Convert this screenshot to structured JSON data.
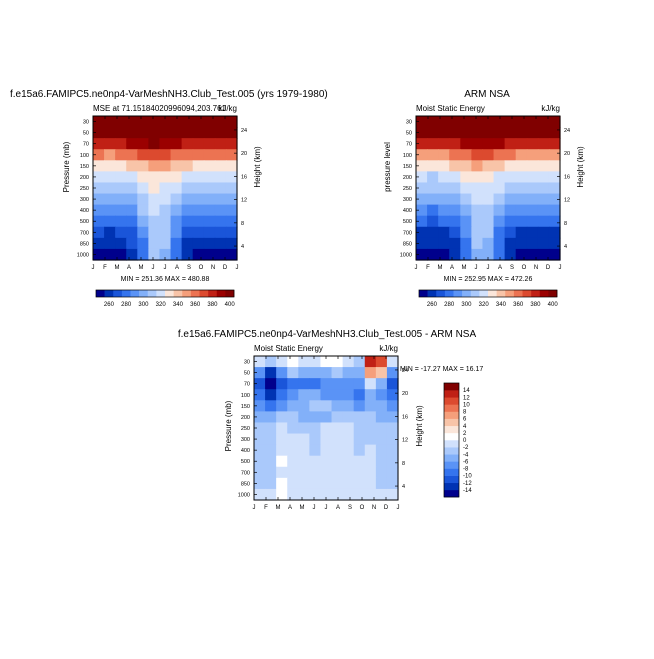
{
  "figure": {
    "title_left": "f.e15a6.FAMIPC5.ne0np4-VarMeshNH3.Club_Test.005 (yrs 1979-1980)",
    "title_right": "ARM NSA",
    "title_bottom": "f.e15a6.FAMIPC5.ne0np4-VarMeshNH3.Club_Test.005 - ARM NSA"
  },
  "palette": {
    "full": [
      "#00008c",
      "#0033b3",
      "#1a55d9",
      "#3574ee",
      "#5a93f6",
      "#82b0f9",
      "#aac9fb",
      "#d1e1fc",
      "#fbe6da",
      "#f8c4a8",
      "#f59f7b",
      "#ec7352",
      "#dc4a2f",
      "#c02015",
      "#9b0000",
      "#800000"
    ],
    "diff": [
      "#00008c",
      "#0033b3",
      "#1a55d9",
      "#3574ee",
      "#5a93f6",
      "#82b0f9",
      "#aac9fb",
      "#d1e1fc",
      "#ffffff",
      "#fbe6da",
      "#f8c4a8",
      "#f59f7b",
      "#ec7352",
      "#dc4a2f",
      "#c02015",
      "#800000"
    ]
  },
  "chart_data": [
    {
      "type": "heatmap",
      "title": "MSE at 71.15184020996094,203.761",
      "unit": "kJ/kg",
      "ylabel": "Pressure (mb)",
      "ylabel_right": "Height (km)",
      "stats": "MIN = 251.36  MAX = 480.88",
      "x_ticks": [
        "J",
        "F",
        "M",
        "A",
        "M",
        "J",
        "J",
        "A",
        "S",
        "O",
        "N",
        "D",
        "J"
      ],
      "y_ticks": [
        "30",
        "50",
        "70",
        "100",
        "150",
        "200",
        "250",
        "300",
        "400",
        "500",
        "700",
        "850",
        "1000"
      ],
      "y_ticks_right": [
        "24",
        "20",
        "16",
        "12",
        "8",
        "4"
      ],
      "pressure_levels": [
        30,
        50,
        70,
        100,
        150,
        200,
        250,
        300,
        400,
        500,
        700,
        850,
        1000
      ],
      "months": [
        "J",
        "F",
        "M",
        "A",
        "M",
        "J",
        "J",
        "A",
        "S",
        "O",
        "N",
        "D",
        "J"
      ],
      "values": [
        [
          480,
          480,
          480,
          480,
          480,
          480,
          480,
          480,
          480,
          480,
          480,
          480,
          480
        ],
        [
          418,
          418,
          420,
          422,
          428,
          432,
          430,
          425,
          420,
          418,
          418,
          418,
          418
        ],
        [
          385,
          384,
          386,
          390,
          396,
          400,
          398,
          394,
          388,
          386,
          385,
          385,
          385
        ],
        [
          360,
          358,
          360,
          364,
          370,
          374,
          372,
          368,
          362,
          360,
          360,
          360,
          360
        ],
        [
          338,
          336,
          338,
          342,
          348,
          352,
          350,
          346,
          340,
          338,
          338,
          338,
          338
        ],
        [
          322,
          320,
          322,
          326,
          332,
          336,
          334,
          330,
          324,
          322,
          322,
          322,
          322
        ],
        [
          314,
          312,
          313,
          316,
          324,
          330,
          328,
          322,
          316,
          314,
          314,
          314,
          314
        ],
        [
          306,
          304,
          305,
          308,
          318,
          326,
          324,
          316,
          308,
          306,
          306,
          306,
          306
        ],
        [
          292,
          290,
          292,
          296,
          310,
          320,
          318,
          306,
          296,
          292,
          292,
          292,
          292
        ],
        [
          282,
          280,
          282,
          286,
          300,
          316,
          314,
          298,
          286,
          282,
          282,
          282,
          282
        ],
        [
          270,
          268,
          270,
          276,
          292,
          314,
          312,
          290,
          274,
          270,
          270,
          270,
          270
        ],
        [
          264,
          262,
          264,
          270,
          288,
          312,
          310,
          286,
          268,
          264,
          264,
          264,
          264
        ],
        [
          258,
          256,
          258,
          264,
          284,
          310,
          308,
          282,
          264,
          258,
          258,
          258,
          258
        ]
      ],
      "colorbar": {
        "levels": [
          250,
          260,
          270,
          280,
          290,
          300,
          310,
          320,
          330,
          340,
          350,
          360,
          370,
          380,
          390,
          400,
          410
        ],
        "labels": [
          "260",
          "280",
          "300",
          "320",
          "340",
          "360",
          "380",
          "400"
        ]
      }
    },
    {
      "type": "heatmap",
      "title": "Moist Static Energy",
      "unit": "kJ/kg",
      "ylabel": "pressure level",
      "ylabel_right": "Height (km)",
      "stats": "MIN = 252.95  MAX = 472.26",
      "x_ticks": [
        "J",
        "F",
        "M",
        "A",
        "M",
        "J",
        "J",
        "A",
        "S",
        "O",
        "N",
        "D",
        "J"
      ],
      "y_ticks": [
        "30",
        "50",
        "70",
        "100",
        "150",
        "200",
        "250",
        "300",
        "400",
        "500",
        "700",
        "850",
        "1000"
      ],
      "y_ticks_right": [
        "24",
        "20",
        "16",
        "12",
        "8",
        "4"
      ],
      "pressure_levels": [
        30,
        50,
        70,
        100,
        150,
        200,
        250,
        300,
        400,
        500,
        700,
        850,
        1000
      ],
      "months": [
        "J",
        "F",
        "M",
        "A",
        "M",
        "J",
        "J",
        "A",
        "S",
        "O",
        "N",
        "D",
        "J"
      ],
      "values": [
        [
          472,
          472,
          472,
          472,
          472,
          472,
          472,
          472,
          472,
          472,
          472,
          472,
          472
        ],
        [
          416,
          416,
          418,
          420,
          426,
          430,
          428,
          424,
          418,
          416,
          416,
          416,
          416
        ],
        [
          384,
          383,
          385,
          389,
          395,
          399,
          397,
          393,
          387,
          385,
          384,
          384,
          384
        ],
        [
          359,
          357,
          359,
          363,
          369,
          373,
          371,
          367,
          361,
          359,
          359,
          359,
          359
        ],
        [
          337,
          335,
          337,
          341,
          347,
          351,
          349,
          345,
          339,
          337,
          337,
          337,
          337
        ],
        [
          321,
          319,
          321,
          325,
          331,
          335,
          333,
          329,
          323,
          321,
          321,
          321,
          321
        ],
        [
          313,
          311,
          312,
          315,
          323,
          329,
          327,
          321,
          315,
          313,
          313,
          313,
          313
        ],
        [
          305,
          303,
          304,
          307,
          317,
          325,
          323,
          315,
          307,
          305,
          305,
          305,
          305
        ],
        [
          291,
          289,
          291,
          295,
          309,
          319,
          317,
          305,
          295,
          291,
          291,
          291,
          291
        ],
        [
          281,
          279,
          281,
          285,
          299,
          315,
          313,
          297,
          285,
          281,
          281,
          281,
          281
        ],
        [
          269,
          267,
          269,
          275,
          291,
          313,
          311,
          289,
          273,
          269,
          269,
          269,
          269
        ],
        [
          263,
          261,
          263,
          269,
          287,
          311,
          309,
          285,
          267,
          263,
          263,
          263,
          263
        ],
        [
          257,
          255,
          257,
          263,
          283,
          309,
          307,
          281,
          263,
          257,
          257,
          257,
          257
        ]
      ],
      "colorbar": {
        "levels": [
          250,
          260,
          270,
          280,
          290,
          300,
          310,
          320,
          330,
          340,
          350,
          360,
          370,
          380,
          390,
          400,
          410
        ],
        "labels": [
          "260",
          "280",
          "300",
          "320",
          "340",
          "360",
          "380",
          "400"
        ]
      }
    },
    {
      "type": "heatmap",
      "title": "Moist Static Energy",
      "unit": "kJ/kg",
      "ylabel": "Pressure (mb)",
      "ylabel_right": "Height (km)",
      "stats": "MIN = -17.27  MAX =  16.17",
      "x_ticks": [
        "J",
        "F",
        "M",
        "A",
        "M",
        "J",
        "J",
        "A",
        "S",
        "O",
        "N",
        "D",
        "J"
      ],
      "y_ticks": [
        "30",
        "50",
        "70",
        "100",
        "150",
        "200",
        "250",
        "300",
        "400",
        "500",
        "700",
        "850",
        "1000"
      ],
      "y_ticks_right": [
        "24",
        "20",
        "16",
        "12",
        "8",
        "4"
      ],
      "pressure_levels": [
        30,
        50,
        70,
        100,
        150,
        200,
        250,
        300,
        400,
        500,
        700,
        850,
        1000
      ],
      "months": [
        "J",
        "F",
        "M",
        "A",
        "M",
        "J",
        "J",
        "A",
        "S",
        "O",
        "N",
        "D",
        "J"
      ],
      "values": [
        [
          -2,
          -4,
          -1,
          1,
          -1,
          -2,
          0,
          1,
          -1,
          -4,
          12,
          10,
          -2
        ],
        [
          -8,
          -14,
          -7,
          -4,
          -5,
          -6,
          -5,
          -4,
          -5,
          -6,
          6,
          4,
          -8
        ],
        [
          -11,
          -16,
          -11,
          -9,
          -9,
          -9,
          -8,
          -7,
          -7,
          -8,
          -2,
          -6,
          -11
        ],
        [
          -9,
          -13,
          -10,
          -7,
          -5,
          -6,
          -7,
          -8,
          -8,
          -10,
          -6,
          -8,
          -9
        ],
        [
          -7,
          -9,
          -7,
          -5,
          -5,
          -4,
          -4,
          -5,
          -6,
          -8,
          -5,
          -6,
          -7
        ],
        [
          -5,
          -5,
          -3,
          -4,
          -5,
          -5,
          -5,
          -3,
          -3,
          -4,
          -4,
          -5,
          -5
        ],
        [
          -4,
          -3,
          -2,
          -3,
          -3,
          -3,
          -2,
          -2,
          -2,
          -3,
          -3,
          -4,
          -4
        ],
        [
          -3,
          -3,
          -1,
          -2,
          -2,
          -3,
          -2,
          -2,
          -2,
          -3,
          -3,
          -3,
          -3
        ],
        [
          -3,
          -3,
          -1,
          -2,
          -2,
          -3,
          -1,
          -2,
          -1,
          -3,
          -2,
          -3,
          -3
        ],
        [
          -3,
          -3,
          1,
          -2,
          -2,
          -2,
          -2,
          -1,
          -2,
          -2,
          -2,
          -3,
          -3
        ],
        [
          -3,
          -3,
          -1,
          -2,
          -2,
          -2,
          -1,
          -2,
          -2,
          -2,
          -2,
          -3,
          -3
        ],
        [
          -3,
          -3,
          1,
          -2,
          -2,
          -2,
          -1,
          -2,
          -1,
          -2,
          -2,
          -3,
          -3
        ],
        [
          -2,
          -2,
          1,
          -2,
          -1,
          -1,
          -2,
          -1,
          -2,
          -2,
          -2,
          -2,
          -2
        ]
      ],
      "colorbar": {
        "levels": [
          -16,
          -14,
          -12,
          -10,
          -8,
          -6,
          -4,
          -2,
          0,
          2,
          4,
          6,
          8,
          10,
          12,
          14,
          16
        ],
        "labels": [
          "14",
          "12",
          "10",
          "8",
          "6",
          "4",
          "2",
          "0",
          "-2",
          "-4",
          "-6",
          "-8",
          "-10",
          "-12",
          "-14"
        ]
      }
    }
  ]
}
